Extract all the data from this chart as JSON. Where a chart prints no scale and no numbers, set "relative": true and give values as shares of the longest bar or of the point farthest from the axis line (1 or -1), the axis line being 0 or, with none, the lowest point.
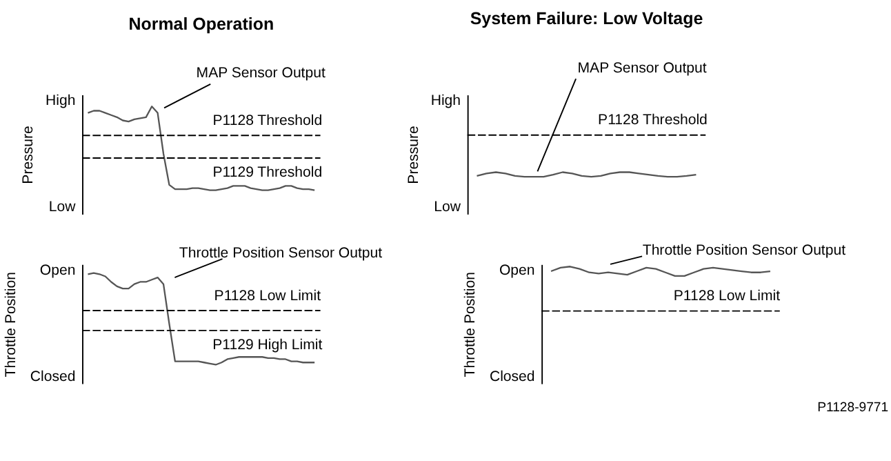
{
  "chart_data": [
    {
      "type": "line",
      "title": "Normal Operation",
      "ylabel": "Pressure",
      "relative": true,
      "grid": false,
      "marker": "none",
      "line_style": "solid",
      "categories": [
        null,
        null,
        null,
        null,
        null,
        null,
        null,
        null,
        null,
        null,
        null,
        null,
        null,
        null,
        null,
        null,
        null,
        null,
        null,
        null,
        null,
        null,
        null,
        null,
        null,
        null,
        null,
        null,
        null,
        null,
        null,
        null,
        null,
        null,
        null,
        null,
        null,
        null,
        null,
        null
      ],
      "series": [
        {
          "color": "#555555",
          "values": [
            0.94,
            0.96,
            0.96,
            0.94,
            0.92,
            0.9,
            0.87,
            0.86,
            0.88,
            0.89,
            0.9,
            1,
            0.94,
            0.56,
            0.27,
            0.23,
            0.23,
            0.23,
            0.24,
            0.24,
            0.23,
            0.22,
            0.22,
            0.23,
            0.24,
            0.26,
            0.26,
            0.26,
            0.24,
            0.23,
            0.22,
            0.22,
            0.23,
            0.24,
            0.26,
            0.26,
            0.24,
            0.23,
            0.23,
            0.22
          ]
        }
      ],
      "ref_lines": [
        {
          "axis": "y",
          "value": 0.73,
          "label": "P1128 Threshold",
          "line_style": "dashed",
          "color": "#000000"
        },
        {
          "axis": "y",
          "value": 0.52,
          "label": "P1129 Threshold",
          "line_style": "dashed",
          "color": "#000000"
        }
      ],
      "annotations": [
        "High",
        "Low",
        "MAP Sensor Output"
      ]
    },
    {
      "type": "line",
      "title": "System Failure: Low Voltage",
      "ylabel": "Pressure",
      "relative": true,
      "grid": false,
      "marker": "none",
      "line_style": "solid",
      "categories": [
        null,
        null,
        null,
        null,
        null,
        null,
        null,
        null,
        null,
        null,
        null,
        null,
        null,
        null,
        null,
        null,
        null,
        null,
        null,
        null,
        null,
        null,
        null,
        null
      ],
      "series": [
        {
          "color": "#555555",
          "values": [
            0.91,
            0.97,
            1,
            0.97,
            0.91,
            0.89,
            0.89,
            0.89,
            0.94,
            1,
            0.97,
            0.91,
            0.89,
            0.91,
            0.97,
            1,
            1,
            0.97,
            0.94,
            0.91,
            0.89,
            0.89,
            0.91,
            0.94
          ]
        }
      ],
      "ref_lines": [
        {
          "axis": "y",
          "value": 1.89,
          "label": "P1128 Threshold",
          "line_style": "dashed",
          "color": "#000000"
        }
      ],
      "annotations": [
        "High",
        "Low",
        "MAP Sensor Output"
      ]
    },
    {
      "type": "line",
      "ylabel": "Throttle Position",
      "relative": true,
      "grid": false,
      "marker": "none",
      "line_style": "solid",
      "categories": [
        null,
        null,
        null,
        null,
        null,
        null,
        null,
        null,
        null,
        null,
        null,
        null,
        null,
        null,
        null,
        null,
        null,
        null,
        null,
        null,
        null,
        null,
        null,
        null,
        null,
        null,
        null,
        null,
        null,
        null,
        null,
        null,
        null,
        null,
        null,
        null,
        null,
        null,
        null,
        null
      ],
      "series": [
        {
          "color": "#555555",
          "values": [
            0.99,
            1,
            0.99,
            0.97,
            0.92,
            0.88,
            0.86,
            0.86,
            0.9,
            0.92,
            0.92,
            0.94,
            0.96,
            0.9,
            0.54,
            0.2,
            0.2,
            0.2,
            0.2,
            0.2,
            0.19,
            0.18,
            0.17,
            0.19,
            0.22,
            0.23,
            0.24,
            0.24,
            0.24,
            0.24,
            0.24,
            0.23,
            0.23,
            0.22,
            0.22,
            0.2,
            0.2,
            0.19,
            0.19,
            0.19
          ]
        }
      ],
      "ref_lines": [
        {
          "axis": "y",
          "value": 0.66,
          "label": "P1128 Low Limit",
          "line_style": "dashed",
          "color": "#000000"
        },
        {
          "axis": "y",
          "value": 0.48,
          "label": "P1129 High Limit",
          "line_style": "dashed",
          "color": "#000000"
        }
      ],
      "annotations": [
        "Open",
        "Closed",
        "Throttle Position Sensor Output"
      ]
    },
    {
      "type": "line",
      "ylabel": "Throttle Position",
      "relative": true,
      "grid": false,
      "marker": "none",
      "line_style": "solid",
      "categories": [
        null,
        null,
        null,
        null,
        null,
        null,
        null,
        null,
        null,
        null,
        null,
        null,
        null,
        null,
        null,
        null,
        null,
        null,
        null,
        null,
        null,
        null,
        null,
        null
      ],
      "series": [
        {
          "color": "#555555",
          "values": [
            0.96,
            0.99,
            1,
            0.98,
            0.95,
            0.94,
            0.95,
            0.94,
            0.93,
            0.96,
            0.99,
            0.98,
            0.95,
            0.92,
            0.92,
            0.95,
            0.98,
            0.99,
            0.98,
            0.97,
            0.96,
            0.95,
            0.95,
            0.96
          ]
        }
      ],
      "ref_lines": [
        {
          "axis": "y",
          "value": 0.62,
          "label": "P1128 Low Limit",
          "line_style": "dashed",
          "color": "#000000"
        }
      ],
      "annotations": [
        "Open",
        "Closed",
        "Throttle Position Sensor Output",
        "P1128-9771"
      ]
    }
  ]
}
